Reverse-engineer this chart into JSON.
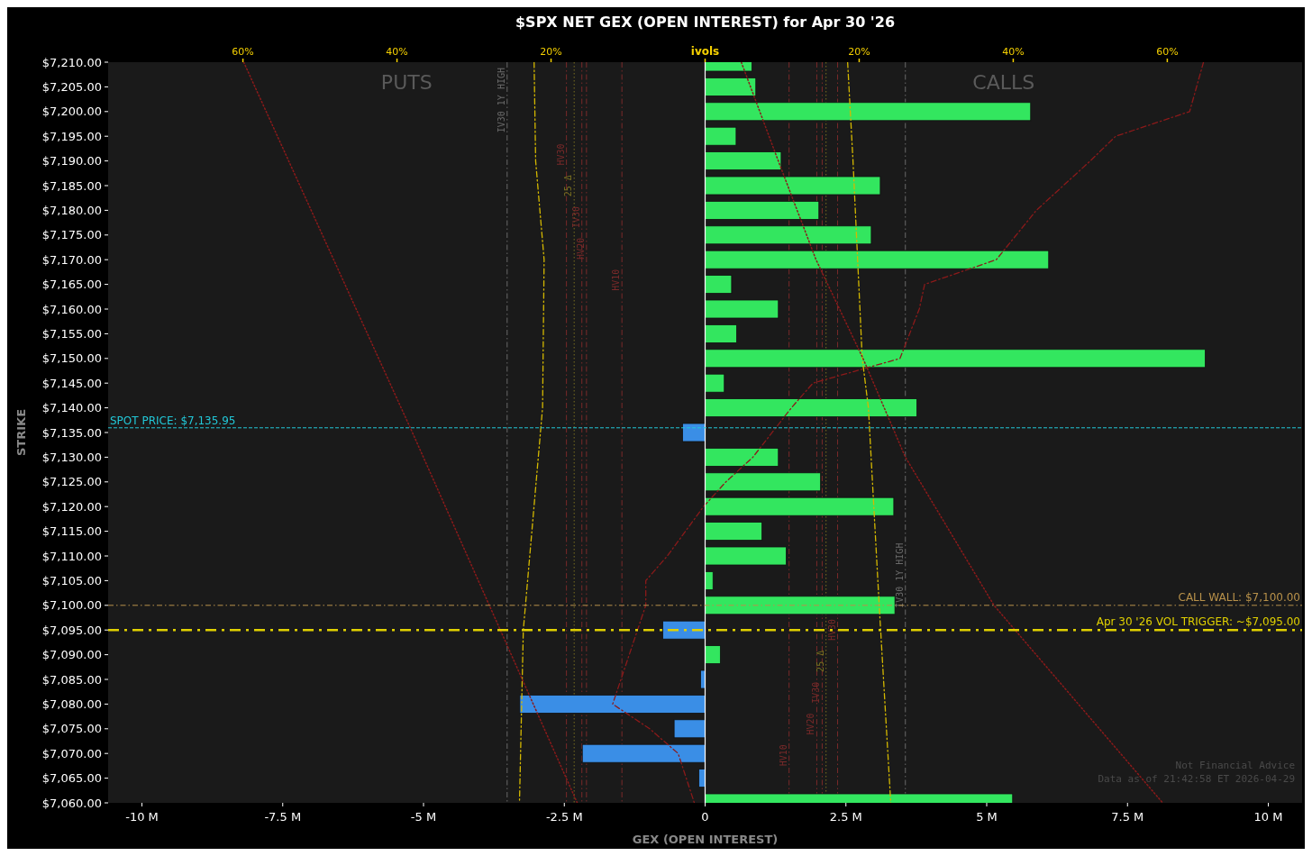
{
  "chart_data": {
    "type": "bar",
    "orientation": "horizontal",
    "title": "$SPX NET GEX (OPEN INTEREST) for Apr 30 '26",
    "xlabel": "GEX (OPEN INTEREST)",
    "ylabel": "STRIKE",
    "x": [
      7210,
      7205,
      7200,
      7195,
      7190,
      7185,
      7180,
      7175,
      7170,
      7165,
      7160,
      7155,
      7150,
      7145,
      7140,
      7135,
      7130,
      7125,
      7120,
      7115,
      7110,
      7105,
      7100,
      7095,
      7090,
      7085,
      7080,
      7075,
      7070,
      7065,
      7060
    ],
    "series": [
      {
        "values": [
          0.83,
          0.9,
          5.78,
          0.55,
          1.35,
          3.11,
          2.02,
          2.95,
          6.1,
          0.47,
          1.3,
          0.56,
          8.88,
          0.34,
          3.76,
          -0.4,
          1.3,
          2.05,
          3.35,
          1.01,
          1.44,
          0.14,
          3.37,
          -0.75,
          0.27,
          -0.08,
          -3.29,
          -0.55,
          -2.18,
          -0.11,
          5.46
        ],
        "colors": [
          "#33e65f",
          "#33e65f",
          "#33e65f",
          "#33e65f",
          "#33e65f",
          "#33e65f",
          "#33e65f",
          "#33e65f",
          "#33e65f",
          "#33e65f",
          "#33e65f",
          "#33e65f",
          "#33e65f",
          "#33e65f",
          "#33e65f",
          "#3a8ee6",
          "#33e65f",
          "#33e65f",
          "#33e65f",
          "#33e65f",
          "#33e65f",
          "#33e65f",
          "#33e65f",
          "#3a8ee6",
          "#33e65f",
          "#3a8ee6",
          "#3a8ee6",
          "#3a8ee6",
          "#3a8ee6",
          "#3a8ee6",
          "#33e65f"
        ]
      },
      {
        "type": "line",
        "axis": "x2",
        "color": "#d4b800",
        "line_style": "dashed",
        "x": [
          7210,
          7190,
          7170,
          7140,
          7095,
          7060
        ],
        "values": [
          -22.2,
          -22,
          -20.9,
          -21.1,
          -23.6,
          -24.1
        ]
      },
      {
        "type": "line",
        "axis": "x2",
        "color": "#d4b800",
        "line_style": "dashed",
        "x": [
          7210,
          7190,
          7150,
          7140,
          7100,
          7060
        ],
        "values": [
          18.5,
          19.2,
          20.4,
          21.2,
          22.6,
          24.1
        ]
      },
      {
        "type": "line",
        "axis": "x2",
        "color": "#8b1a1a",
        "line_style": "dotted",
        "x": [
          7210,
          7135,
          7060
        ],
        "values": [
          -59.9,
          -38,
          -16.6
        ]
      },
      {
        "type": "line",
        "axis": "x2",
        "color": "#8b1a1a",
        "line_style": "dotted",
        "x": [
          7210,
          7190,
          7170,
          7150,
          7130,
          7100,
          7060
        ],
        "values": [
          4.7,
          9.5,
          14.4,
          20.5,
          26,
          37.5,
          59.4
        ]
      },
      {
        "type": "line",
        "axis": "x2",
        "color": "#8b1a1a",
        "line_style": "dashed",
        "x": [
          7210,
          7200,
          7195,
          7190,
          7180,
          7170,
          7165,
          7160,
          7150,
          7145,
          7140,
          7130,
          7125,
          7120,
          7110,
          7105,
          7100,
          7080,
          7075,
          7070,
          7060
        ],
        "values": [
          64.7,
          62.9,
          53.3,
          50,
          43,
          37.8,
          28.5,
          27.8,
          25.3,
          14,
          11.2,
          6.2,
          2.7,
          -0.2,
          -4.9,
          -7.7,
          -7.7,
          -12,
          -7.2,
          -3.5,
          -1.4
        ]
      }
    ],
    "xlim": [
      -10.6,
      10.6
    ],
    "xticks": [
      {
        "value": -10,
        "label": "-10 M"
      },
      {
        "value": -7.5,
        "label": "-7.5 M"
      },
      {
        "value": -5,
        "label": "-5 M"
      },
      {
        "value": -2.5,
        "label": "-2.5 M"
      },
      0,
      {
        "value": 2.5,
        "label": "2.5 M"
      },
      {
        "value": 5,
        "label": "5 M"
      },
      {
        "value": 7.5,
        "label": "7.5 M"
      },
      {
        "value": 10,
        "label": "10 M"
      }
    ],
    "x2lim": [
      -77.5,
      77.5
    ],
    "x2ticks": [
      {
        "value": -60,
        "label": "60%"
      },
      {
        "value": -40,
        "label": "40%"
      },
      {
        "value": -20,
        "label": "20%"
      },
      {
        "value": 0,
        "label": "ivols"
      },
      {
        "value": 20,
        "label": "20%"
      },
      {
        "value": 40,
        "label": "40%"
      },
      {
        "value": 60,
        "label": "60%"
      }
    ],
    "ylim": [
      7060,
      7210
    ],
    "yticks": [
      {
        "value": 7210,
        "label": "$7,210.00"
      },
      {
        "value": 7205,
        "label": "$7,205.00"
      },
      {
        "value": 7200,
        "label": "$7,200.00"
      },
      {
        "value": 7195,
        "label": "$7,195.00"
      },
      {
        "value": 7190,
        "label": "$7,190.00"
      },
      {
        "value": 7185,
        "label": "$7,185.00"
      },
      {
        "value": 7180,
        "label": "$7,180.00"
      },
      {
        "value": 7175,
        "label": "$7,175.00"
      },
      {
        "value": 7170,
        "label": "$7,170.00"
      },
      {
        "value": 7165,
        "label": "$7,165.00"
      },
      {
        "value": 7160,
        "label": "$7,160.00"
      },
      {
        "value": 7155,
        "label": "$7,155.00"
      },
      {
        "value": 7150,
        "label": "$7,150.00"
      },
      {
        "value": 7145,
        "label": "$7,145.00"
      },
      {
        "value": 7140,
        "label": "$7,140.00"
      },
      {
        "value": 7135,
        "label": "$7,135.00"
      },
      {
        "value": 7130,
        "label": "$7,130.00"
      },
      {
        "value": 7125,
        "label": "$7,125.00"
      },
      {
        "value": 7120,
        "label": "$7,120.00"
      },
      {
        "value": 7115,
        "label": "$7,115.00"
      },
      {
        "value": 7110,
        "label": "$7,110.00"
      },
      {
        "value": 7105,
        "label": "$7,105.00"
      },
      {
        "value": 7100,
        "label": "$7,100.00"
      },
      {
        "value": 7095,
        "label": "$7,095.00"
      },
      {
        "value": 7090,
        "label": "$7,090.00"
      },
      {
        "value": 7085,
        "label": "$7,085.00"
      },
      {
        "value": 7080,
        "label": "$7,080.00"
      },
      {
        "value": 7075,
        "label": "$7,075.00"
      },
      {
        "value": 7070,
        "label": "$7,070.00"
      },
      {
        "value": 7065,
        "label": "$7,065.00"
      },
      {
        "value": 7060,
        "label": "$7,060.00"
      }
    ],
    "ref_lines": [
      {
        "axis": "y",
        "value": 7135.95,
        "label": "SPOT PRICE: $7,135.95",
        "color": "#22c8d8",
        "line_style": "dashed"
      },
      {
        "axis": "y",
        "value": 7100,
        "label": "CALL WALL: $7,100.00",
        "color": "#b8914a",
        "line_style": "dashed"
      },
      {
        "axis": "y",
        "value": 7095,
        "label": "Apr 30 '26 VOL TRIGGER: ~$7,095.00",
        "color": "#e0d000",
        "line_style": "dashed"
      },
      {
        "axis": "x2",
        "value": -25.7,
        "label": "IV30 1Y HIGH",
        "color": "#6a6a6a",
        "line_style": "dashed"
      },
      {
        "axis": "x2",
        "value": -18,
        "label": "HV30",
        "color": "#7a2a2a",
        "line_style": "dashed"
      },
      {
        "axis": "x2",
        "value": -17,
        "label": "25 Δ",
        "color": "#7a7020",
        "line_style": "dotted"
      },
      {
        "axis": "x2",
        "value": -16,
        "label": "IV30",
        "color": "#7a2a2a",
        "line_style": "dashed"
      },
      {
        "axis": "x2",
        "value": -15.4,
        "label": "HV20",
        "color": "#7a2a2a",
        "line_style": "dashed"
      },
      {
        "axis": "x2",
        "value": -10.8,
        "label": "HV10",
        "color": "#7a2a2a",
        "line_style": "dashed"
      },
      {
        "axis": "x2",
        "value": 10.9,
        "label": "HV10",
        "color": "#7a2a2a",
        "line_style": "dashed"
      },
      {
        "axis": "x2",
        "value": 14.5,
        "label": "HV20",
        "color": "#7a2a2a",
        "line_style": "dashed"
      },
      {
        "axis": "x2",
        "value": 15.2,
        "label": "IV30",
        "color": "#7a2a2a",
        "line_style": "dashed"
      },
      {
        "axis": "x2",
        "value": 15.7,
        "label": "25 Δ",
        "color": "#7a7020",
        "line_style": "dotted"
      },
      {
        "axis": "x2",
        "value": 17.2,
        "label": "HV30",
        "color": "#7a2a2a",
        "line_style": "dashed"
      },
      {
        "axis": "x2",
        "value": 26,
        "label": "IV30 1Y HIGH",
        "color": "#6a6a6a",
        "line_style": "dashed"
      }
    ],
    "annotations": [
      "PUTS",
      "CALLS",
      "Not Financial Advice",
      "Data as of 21:42:58 ET 2026-04-29"
    ],
    "grid": false
  }
}
